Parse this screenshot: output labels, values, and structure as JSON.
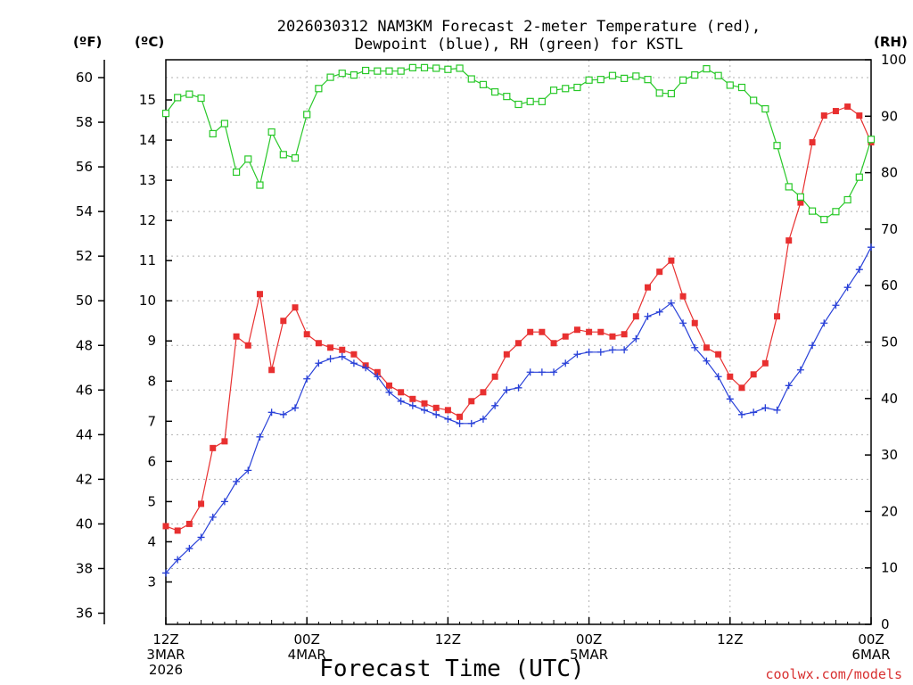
{
  "chart_data": {
    "type": "line",
    "title_line1": "2026030312 NAM3KM Forecast 2-meter Temperature (red),",
    "title_line2": "Dewpoint (blue), RH (green) for KSTL",
    "unit_f": "(ºF)",
    "unit_c": "(ºC)",
    "unit_rh": "(RH)",
    "xlabel": "Forecast Time (UTC)",
    "credit": "coolwx.com/models",
    "grid": true,
    "x_range_hours": [
      0,
      60
    ],
    "y_f_range": [
      35.5,
      60.8
    ],
    "y_rh_range": [
      0,
      100
    ],
    "y_f_ticks": [
      "36",
      "38",
      "40",
      "42",
      "44",
      "46",
      "48",
      "50",
      "52",
      "54",
      "56",
      "58",
      "60"
    ],
    "y_c_ticks": [
      "3",
      "4",
      "5",
      "6",
      "7",
      "8",
      "9",
      "10",
      "11",
      "12",
      "13",
      "14",
      "15"
    ],
    "y_rh_ticks": [
      "0",
      "10",
      "20",
      "30",
      "40",
      "50",
      "60",
      "70",
      "80",
      "90",
      "100"
    ],
    "x_ticks": [
      {
        "hour": 0,
        "line1": "12Z",
        "line2": "3MAR",
        "line3": "2026"
      },
      {
        "hour": 12,
        "line1": "00Z",
        "line2": "4MAR",
        "line3": ""
      },
      {
        "hour": 24,
        "line1": "12Z",
        "line2": "",
        "line3": ""
      },
      {
        "hour": 36,
        "line1": "00Z",
        "line2": "5MAR",
        "line3": ""
      },
      {
        "hour": 48,
        "line1": "12Z",
        "line2": "",
        "line3": ""
      },
      {
        "hour": 60,
        "line1": "00Z",
        "line2": "6MAR",
        "line3": ""
      }
    ],
    "series": [
      {
        "name": "Temperature",
        "color": "#e83030",
        "marker": "filled-square",
        "axis": "F",
        "values": [
          39.9,
          39.7,
          40.0,
          40.9,
          43.4,
          43.7,
          48.4,
          48.0,
          50.3,
          46.9,
          49.1,
          49.7,
          48.5,
          48.1,
          47.9,
          47.8,
          47.6,
          47.1,
          46.8,
          46.2,
          45.9,
          45.6,
          45.4,
          45.2,
          45.1,
          44.8,
          45.5,
          45.9,
          46.6,
          47.6,
          48.1,
          48.6,
          48.6,
          48.1,
          48.4,
          48.7,
          48.6,
          48.6,
          48.4,
          48.5,
          49.3,
          50.6,
          51.3,
          51.8,
          50.2,
          49.0,
          47.9,
          47.6,
          46.6,
          46.1,
          46.7,
          47.2,
          49.3,
          52.7,
          54.4,
          57.1,
          58.3,
          58.5,
          58.7,
          58.3,
          57.1
        ]
      },
      {
        "name": "Dewpoint",
        "color": "#2840d8",
        "marker": "plus",
        "axis": "F",
        "values": [
          37.8,
          38.4,
          38.9,
          39.4,
          40.3,
          41.0,
          41.9,
          42.4,
          43.9,
          45.0,
          44.9,
          45.2,
          46.5,
          47.2,
          47.4,
          47.5,
          47.2,
          47.0,
          46.6,
          45.9,
          45.5,
          45.3,
          45.1,
          44.9,
          44.7,
          44.5,
          44.5,
          44.7,
          45.3,
          46.0,
          46.1,
          46.8,
          46.8,
          46.8,
          47.2,
          47.6,
          47.7,
          47.7,
          47.8,
          47.8,
          48.3,
          49.3,
          49.5,
          49.9,
          49.0,
          47.9,
          47.3,
          46.6,
          45.6,
          44.9,
          45.0,
          45.2,
          45.1,
          46.2,
          46.9,
          48.0,
          49.0,
          49.8,
          50.6,
          51.4,
          52.4
        ]
      },
      {
        "name": "RH",
        "color": "#28c828",
        "marker": "open-square",
        "axis": "RH",
        "values": [
          90.5,
          93.3,
          93.9,
          93.2,
          86.9,
          88.7,
          80.1,
          82.4,
          77.8,
          87.2,
          83.2,
          82.6,
          90.3,
          94.9,
          96.9,
          97.6,
          97.3,
          98.1,
          98.0,
          98.0,
          98.0,
          98.6,
          98.6,
          98.5,
          98.3,
          98.5,
          96.6,
          95.6,
          94.3,
          93.5,
          92.1,
          92.6,
          92.6,
          94.6,
          94.9,
          95.1,
          96.4,
          96.5,
          97.2,
          96.7,
          97.1,
          96.5,
          94.1,
          94.0,
          96.4,
          97.3,
          98.4,
          97.2,
          95.5,
          95.1,
          92.8,
          91.3,
          84.8,
          77.5,
          75.7,
          73.2,
          71.7,
          73.1,
          75.2,
          79.2,
          85.9
        ]
      }
    ]
  }
}
